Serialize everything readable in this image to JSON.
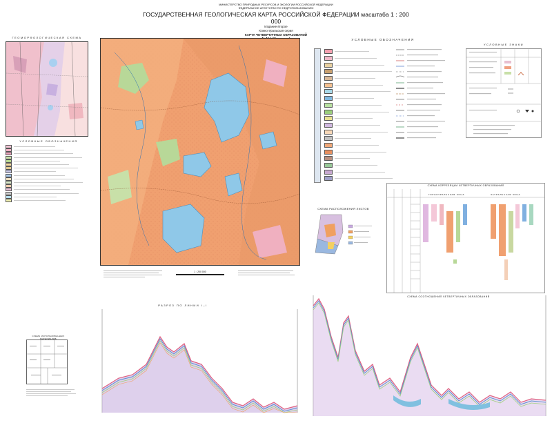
{
  "header": {
    "ministry": "МИНИСТЕРСТВО ПРИРОДНЫХ РЕСУРСОВ И ЭКОЛОГИИ РОССИЙСКОЙ ФЕДЕРАЦИИ",
    "agency": "ФЕДЕРАЛЬНОЕ АГЕНТСТВО ПО НЕДРОПОЛЬЗОВАНИЮ",
    "title": "ГОСУДАРСТВЕННАЯ ГЕОЛОГИЧЕСКАЯ КАРТА РОССИЙСКОЙ ФЕДЕРАЦИИ масштаба 1 : 200 000",
    "edition": "Издание второе",
    "series": "Южно-Уральская серия",
    "map_name": "КАРТА ЧЕТВЕРТИЧНЫХ ОБРАЗОВАНИЙ",
    "sheet": "N-41-I (Kыштым)"
  },
  "inset": {
    "title": "ГЕОМОРФОЛОГИЧЕСКАЯ СХЕМА"
  },
  "left_legend": {
    "title": "УСЛОВНЫЕ ОБОЗНАЧЕНИЯ",
    "items": [
      {
        "color": "#f6c8d8"
      },
      {
        "color": "#f4b4c8"
      },
      {
        "color": "#e8a0b8"
      },
      {
        "color": "#c8e0a8"
      },
      {
        "color": "#b8d890"
      },
      {
        "color": "#f4d8a0"
      },
      {
        "color": "#e0c890"
      },
      {
        "color": "#c8c8e8"
      },
      {
        "color": "#a8c8e8"
      },
      {
        "color": "#f0e0c0"
      },
      {
        "color": "#d8e8c8"
      },
      {
        "color": "#f8d0b0"
      },
      {
        "color": "#e8c0d8"
      },
      {
        "color": "#d0d0d0"
      },
      {
        "color": "#b8e0f0"
      },
      {
        "color": "#f0f0b0"
      }
    ]
  },
  "right_legend": {
    "title": "УСЛОВНЫЕ ОБОЗНАЧЕНИЯ",
    "colors": [
      "#f4a0b0",
      "#f0b8c8",
      "#e8d0a0",
      "#c8a070",
      "#d8b898",
      "#f4c090",
      "#a8d8e8",
      "#80b8e0",
      "#b8e0a0",
      "#9ccf7c",
      "#e8e090",
      "#d0b8e0",
      "#f8d8b8",
      "#c0c0c0",
      "#f0a878",
      "#e89060",
      "#b89080",
      "#98c898",
      "#c8a8d0",
      "#a0a0c8"
    ]
  },
  "symbols_legend": {
    "title": "УСЛОВНЫЕ ЗНАКИ"
  },
  "correlation": {
    "title": "СХЕМА КОРРЕЛЯЦИИ ЧЕТВЕРТИЧНЫХ ОБРАЗОВАНИЙ",
    "col_a": "ГОРНОУРАЛЬСКАЯ ЗОНА",
    "col_b": "ЗАУРАЛЬСКАЯ ЗОНА"
  },
  "lower_inset": {
    "title": "СХЕМА РАСПОЛОЖЕНИЯ ЛИСТОВ"
  },
  "scale": {
    "value": "1 : 200 000"
  },
  "section1": {
    "title": "РАЗРЕЗ ПО ЛИНИИ I–I"
  },
  "section2": {
    "title": "СХЕМА СООТНОШЕНИЙ ЧЕТВЕРТИЧНЫХ ОБРАЗОВАНИЙ"
  },
  "small_scheme": {
    "title": "СХЕМА ИСПОЛЬЗОВАННЫХ МАТЕРИАЛОВ"
  },
  "map_colors": {
    "base": "#f0a070",
    "lake": "#8fc8e8",
    "green": "#b8d898",
    "pink": "#f0b0c0"
  }
}
